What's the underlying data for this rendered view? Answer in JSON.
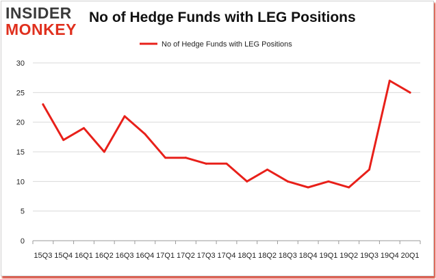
{
  "brand": {
    "top": "INSIDER",
    "bottom": "MONKEY"
  },
  "chart_data": {
    "type": "line",
    "title": "No of Hedge Funds with LEG Positions",
    "xlabel": "",
    "ylabel": "",
    "ylim": [
      0,
      30
    ],
    "yticks": [
      0,
      5,
      10,
      15,
      20,
      25,
      30
    ],
    "grid": true,
    "legend": "top-center",
    "categories": [
      "15Q3",
      "15Q4",
      "16Q1",
      "16Q2",
      "16Q3",
      "16Q4",
      "17Q1",
      "17Q2",
      "17Q3",
      "17Q4",
      "18Q1",
      "18Q2",
      "18Q3",
      "18Q4",
      "19Q1",
      "19Q2",
      "19Q3",
      "19Q4",
      "20Q1"
    ],
    "series": [
      {
        "name": "No of Hedge Funds with LEG Positions",
        "color": "#e8201a",
        "values": [
          23,
          17,
          19,
          15,
          21,
          18,
          14,
          14,
          13,
          13,
          10,
          12,
          10,
          9,
          10,
          9,
          12,
          27,
          25
        ]
      }
    ]
  }
}
